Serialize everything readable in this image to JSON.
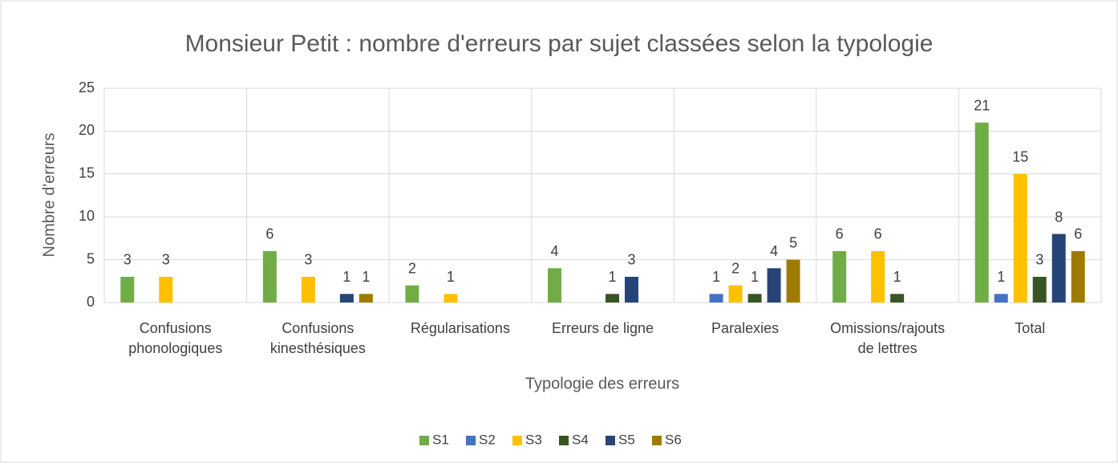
{
  "chart_data": {
    "type": "bar",
    "title": "Monsieur Petit : nombre d'erreurs par sujet classées selon la typologie",
    "x_label": "Typologie des erreurs",
    "y_label": "Nombre d'erreurs",
    "categories": [
      "Confusions\nphonologiques",
      "Confusions\nkinesthésiques",
      "Régularisations",
      "Erreurs de ligne",
      "Paralexies",
      "Omissions/rajouts\nde lettres",
      "Total"
    ],
    "series": [
      {
        "name": "S1",
        "color": "#70ad47",
        "values": [
          3,
          6,
          2,
          4,
          null,
          6,
          21
        ]
      },
      {
        "name": "S2",
        "color": "#4472c4",
        "values": [
          null,
          null,
          null,
          null,
          1,
          null,
          1
        ]
      },
      {
        "name": "S3",
        "color": "#ffc000",
        "values": [
          3,
          3,
          1,
          null,
          2,
          6,
          15
        ]
      },
      {
        "name": "S4",
        "color": "#375623",
        "values": [
          null,
          null,
          null,
          1,
          1,
          1,
          3
        ]
      },
      {
        "name": "S5",
        "color": "#264478",
        "values": [
          null,
          1,
          null,
          3,
          4,
          null,
          8
        ]
      },
      {
        "name": "S6",
        "color": "#9e7b00",
        "values": [
          null,
          1,
          null,
          null,
          5,
          null,
          6
        ]
      }
    ],
    "ylim": [
      0,
      25
    ],
    "yticks": [
      0,
      5,
      10,
      15,
      20,
      25
    ],
    "grid": true,
    "legend": "bottom"
  }
}
